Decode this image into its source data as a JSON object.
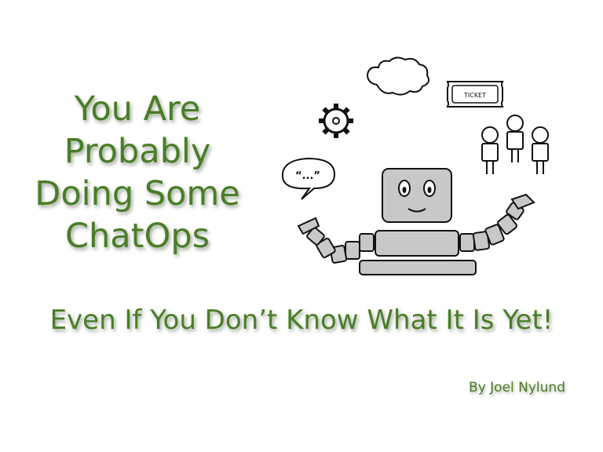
{
  "slide": {
    "title_lines": [
      "You Are",
      "Probably",
      "Doing Some",
      "ChatOps"
    ],
    "subtitle": "Even If You Don’t Know What It Is Yet!",
    "author": "By Joel Nylund"
  },
  "illustration": {
    "ticket_label": "TICKET",
    "speech_bubble_text": "“...”",
    "icons": [
      "cloud-icon",
      "ticket-icon",
      "gear-icon",
      "speech-bubble-icon",
      "people-icon",
      "robot-icon"
    ]
  },
  "colors": {
    "text": "#4a7d27",
    "robot_fill": "#c8c8c8",
    "outline": "#111111"
  }
}
